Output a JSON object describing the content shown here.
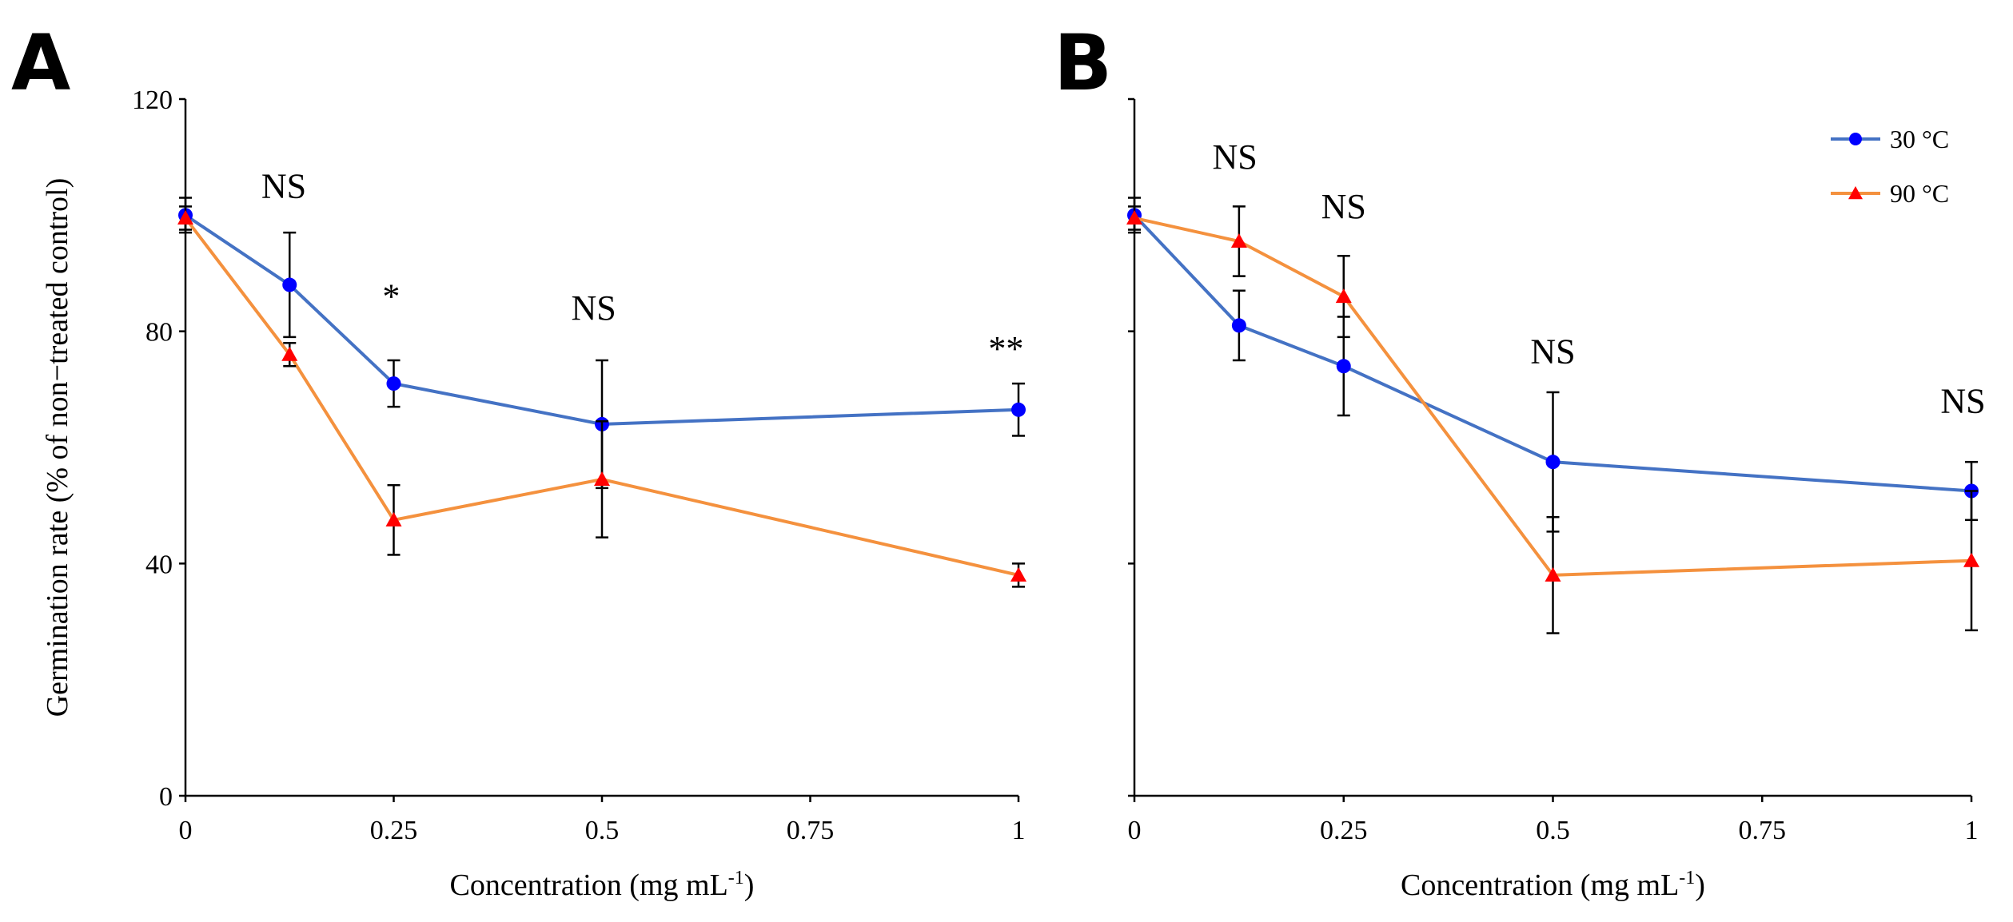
{
  "chart_data": [
    {
      "panel": "A",
      "type": "line",
      "xlabel": "Concentration (mg mL",
      "xlabel_sup": "-1",
      "xlabel_end": ")",
      "ylabel": "Germination rate (% of non−treated control)",
      "xlim": [
        0,
        1
      ],
      "ylim": [
        0,
        120
      ],
      "x_ticks": [
        0,
        0.25,
        0.5,
        0.75,
        1
      ],
      "x_tick_labels": [
        "0",
        "0.25",
        "0.5",
        "0.75",
        "1"
      ],
      "y_ticks": [
        0,
        40,
        80,
        120
      ],
      "y_tick_labels": [
        "0",
        "40",
        "80",
        "120"
      ],
      "grid": false,
      "series": [
        {
          "name": "30 °C",
          "color": "#4472C4",
          "marker_color": "#0000FF",
          "marker": "circle",
          "x": [
            0,
            0.125,
            0.25,
            0.5,
            1
          ],
          "y": [
            100,
            88,
            71,
            64,
            66.5
          ],
          "err": [
            3,
            9,
            4,
            11,
            4.5
          ]
        },
        {
          "name": "90 °C",
          "color": "#F4913E",
          "marker_color": "#FF0000",
          "marker": "triangle",
          "x": [
            0,
            0.125,
            0.25,
            0.5,
            1
          ],
          "y": [
            99.5,
            76,
            47.5,
            54.5,
            38
          ],
          "err": [
            2,
            2,
            6,
            10,
            2
          ]
        }
      ],
      "annotations": [
        {
          "text": "NS",
          "x": 0.118,
          "y": 103
        },
        {
          "text": "*",
          "x": 0.247,
          "y": 84
        },
        {
          "text": "NS",
          "x": 0.49,
          "y": 82
        },
        {
          "text": "**",
          "x": 0.985,
          "y": 75
        }
      ]
    },
    {
      "panel": "B",
      "type": "line",
      "xlabel": "Concentration (mg mL",
      "xlabel_sup": "-1",
      "xlabel_end": ")",
      "xlim": [
        0,
        1
      ],
      "ylim": [
        0,
        120
      ],
      "x_ticks": [
        0,
        0.25,
        0.5,
        0.75,
        1
      ],
      "x_tick_labels": [
        "0",
        "0.25",
        "0.5",
        "0.75",
        "1"
      ],
      "y_ticks": [
        0,
        40,
        80,
        120
      ],
      "grid": false,
      "legend": "top-right",
      "series": [
        {
          "name": "30 °C",
          "color": "#4472C4",
          "marker_color": "#0000FF",
          "marker": "circle",
          "x": [
            0,
            0.125,
            0.25,
            0.5,
            1
          ],
          "y": [
            100,
            81,
            74,
            57.5,
            52.5
          ],
          "err": [
            3,
            6,
            8.5,
            12,
            5
          ]
        },
        {
          "name": "90 °C",
          "color": "#F4913E",
          "marker_color": "#FF0000",
          "marker": "triangle",
          "x": [
            0,
            0.125,
            0.25,
            0.5,
            1
          ],
          "y": [
            99.5,
            95.5,
            86,
            38,
            40.5
          ],
          "err": [
            2,
            6,
            7,
            10,
            12
          ]
        }
      ],
      "annotations": [
        {
          "text": "NS",
          "x": 0.12,
          "y": 108
        },
        {
          "text": "NS",
          "x": 0.25,
          "y": 99.5
        },
        {
          "text": "NS",
          "x": 0.5,
          "y": 74.5
        },
        {
          "text": "NS",
          "x": 0.99,
          "y": 66
        }
      ]
    }
  ]
}
